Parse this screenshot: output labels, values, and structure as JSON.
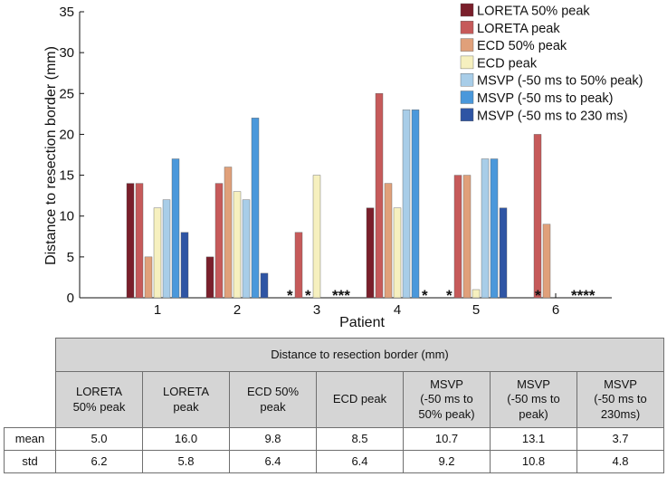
{
  "chart_data": {
    "type": "bar",
    "title": "",
    "xlabel": "Patient",
    "ylabel": "Distance to resection border (mm)",
    "ylim": [
      0,
      35
    ],
    "yticks": [
      0,
      5,
      10,
      15,
      20,
      25,
      30,
      35
    ],
    "grid": false,
    "legend_position": "top-right",
    "categories": [
      "1",
      "2",
      "3",
      "4",
      "5",
      "6"
    ],
    "series": [
      {
        "name": "LORETA 50% peak",
        "color": "#7a1f2b",
        "values": [
          14,
          5,
          null,
          11,
          null,
          null
        ]
      },
      {
        "name": "LORETA peak",
        "color": "#c65a5a",
        "values": [
          14,
          14,
          8,
          25,
          15,
          20
        ]
      },
      {
        "name": "ECD 50% peak",
        "color": "#e0a07a",
        "values": [
          5,
          16,
          null,
          14,
          15,
          9
        ]
      },
      {
        "name": "ECD peak",
        "color": "#f6f0bf",
        "values": [
          11,
          13,
          15,
          11,
          1,
          null
        ]
      },
      {
        "name": "MSVP (-50 ms to 50% peak)",
        "color": "#a8cde8",
        "values": [
          12,
          12,
          null,
          23,
          17,
          null
        ]
      },
      {
        "name": "MSVP (-50 ms to peak)",
        "color": "#4a98db",
        "values": [
          17,
          22,
          null,
          23,
          17,
          null
        ]
      },
      {
        "name": "MSVP (-50 ms to 230 ms)",
        "color": "#2f55a4",
        "values": [
          8,
          3,
          null,
          null,
          11,
          null
        ]
      }
    ],
    "annotations": [
      {
        "category": "3",
        "series_index": 0,
        "text": "*"
      },
      {
        "category": "3",
        "series_index": 2,
        "text": "*"
      },
      {
        "category": "3",
        "series_index": 5,
        "text": "***"
      },
      {
        "category": "4",
        "series_index": 6,
        "text": "*"
      },
      {
        "category": "5",
        "series_index": 0,
        "text": "*"
      },
      {
        "category": "6",
        "series_index": 1,
        "text": "*"
      },
      {
        "category": "6",
        "series_index": 5,
        "text": "****"
      }
    ]
  },
  "table": {
    "header": "Distance to resection border (mm)",
    "columns": [
      [
        "LORETA",
        "50% peak"
      ],
      [
        "LORETA",
        "peak"
      ],
      [
        "ECD 50%",
        "peak"
      ],
      [
        "ECD peak"
      ],
      [
        "MSVP",
        "(-50 ms to",
        "50% peak)"
      ],
      [
        "MSVP",
        "(-50 ms to",
        "peak)"
      ],
      [
        "MSVP",
        "(-50 ms to",
        "230ms)"
      ]
    ],
    "rows": [
      {
        "label": "mean",
        "values": [
          "5.0",
          "16.0",
          "9.8",
          "8.5",
          "10.7",
          "13.1",
          "3.7"
        ]
      },
      {
        "label": "std",
        "values": [
          "6.2",
          "5.8",
          "6.4",
          "6.4",
          "9.2",
          "10.8",
          "4.8"
        ]
      }
    ]
  }
}
